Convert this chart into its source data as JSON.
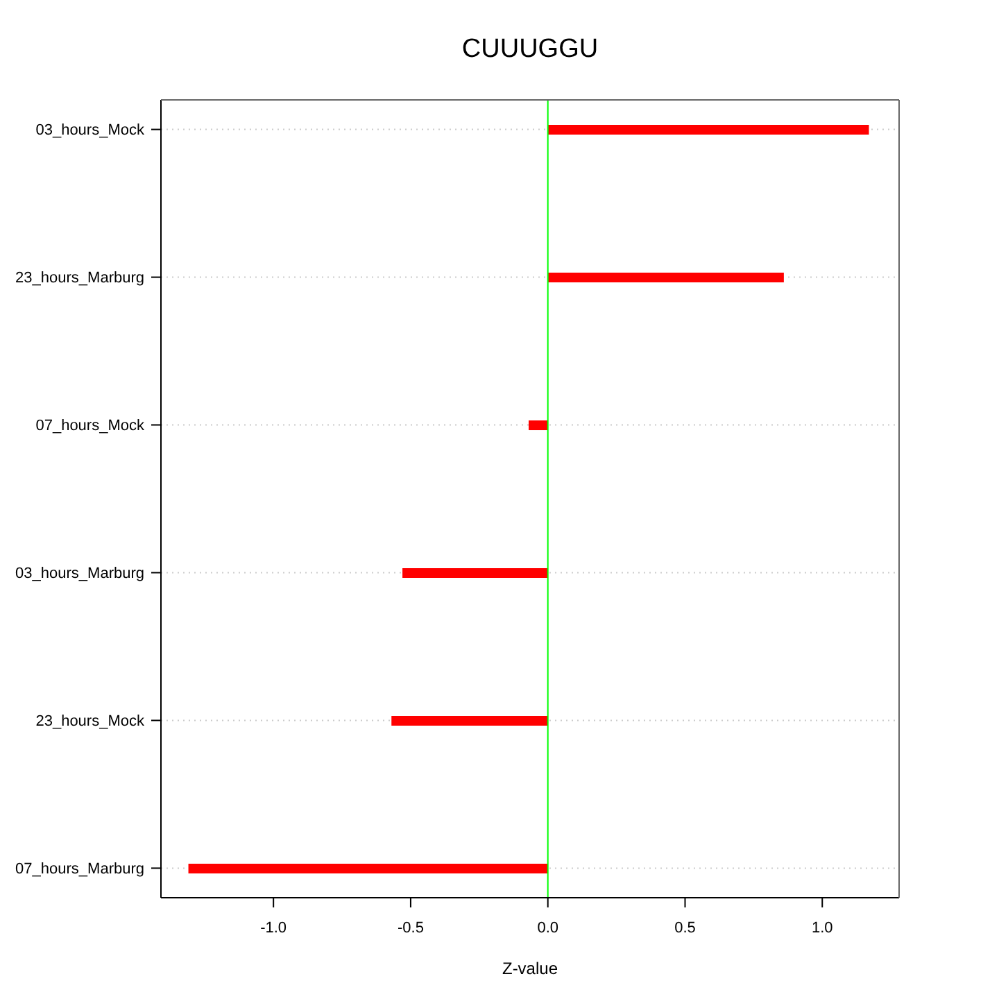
{
  "chart_data": {
    "type": "bar",
    "title": "CUUUGGU",
    "xlabel": "Z-value",
    "orientation": "horizontal",
    "categories": [
      "03_hours_Mock",
      "23_hours_Marburg",
      "07_hours_Mock",
      "03_hours_Marburg",
      "23_hours_Mock",
      "07_hours_Marburg"
    ],
    "values": [
      1.17,
      0.86,
      -0.07,
      -0.53,
      -0.57,
      -1.31
    ],
    "color": "#ff0000",
    "xlim": [
      -1.41,
      1.28
    ],
    "xticks": [
      {
        "value": -1,
        "label": "-1.0"
      },
      {
        "value": -0.5,
        "label": "-0.5"
      },
      {
        "value": 0,
        "label": "0.0"
      },
      {
        "value": 0.5,
        "label": "0.5"
      },
      {
        "value": 1,
        "label": "1.0"
      }
    ],
    "grid": "y",
    "ref_lines": [
      {
        "axis": "x",
        "value": 0,
        "color": "#00ff00"
      }
    ]
  }
}
